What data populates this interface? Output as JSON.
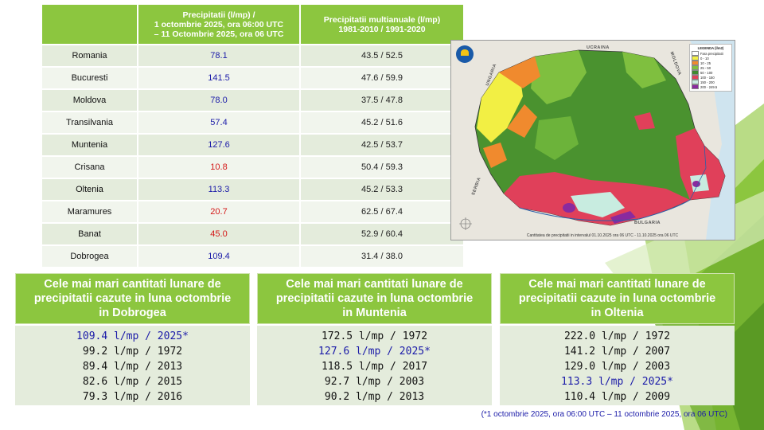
{
  "table": {
    "headers": [
      "",
      "Precipitatii (l/mp) /\n1 octombrie 2025, ora 06:00 UTC\n– 11 Octombrie 2025, ora 06 UTC",
      "Precipitatii multianuale (l/mp)\n1981-2010 / 1991-2020"
    ],
    "header_lines": {
      "col2": [
        "Precipitatii (l/mp) /",
        "1 octombrie 2025, ora 06:00 UTC",
        "– 11 Octombrie 2025, ora 06 UTC"
      ],
      "col3": [
        "Precipitatii multianuale (l/mp)",
        "1981-2010 / 1991-2020"
      ]
    },
    "rows": [
      {
        "region": "Romania",
        "value": "78.1",
        "color": "blue",
        "normal": "43.5 / 52.5"
      },
      {
        "region": "Bucuresti",
        "value": "141.5",
        "color": "blue",
        "normal": "47.6 / 59.9"
      },
      {
        "region": "Moldova",
        "value": "78.0",
        "color": "blue",
        "normal": "37.5 / 47.8"
      },
      {
        "region": "Transilvania",
        "value": "57.4",
        "color": "blue",
        "normal": "45.2 / 51.6"
      },
      {
        "region": "Muntenia",
        "value": "127.6",
        "color": "blue",
        "normal": "42.5 / 53.7"
      },
      {
        "region": "Crisana",
        "value": "10.8",
        "color": "red",
        "normal": "50.4 / 59.3"
      },
      {
        "region": "Oltenia",
        "value": "113.3",
        "color": "blue",
        "normal": "45.2 / 53.3"
      },
      {
        "region": "Maramures",
        "value": "20.7",
        "color": "red",
        "normal": "62.5 / 67.4"
      },
      {
        "region": "Banat",
        "value": "45.0",
        "color": "red",
        "normal": "52.9 / 60.4"
      },
      {
        "region": "Dobrogea",
        "value": "109.4",
        "color": "blue",
        "normal": "31.4 / 38.0"
      }
    ]
  },
  "map": {
    "country_labels": {
      "ukraine": "UCRAINA",
      "moldova": "MOLDOVA",
      "hungary": "UNGARIA",
      "serbia": "SERBIA",
      "bulgaria": "BULGARIA"
    },
    "legend_title": "LEGENDA (l/m2)",
    "legend": [
      {
        "label": "Fara precipitatii",
        "color": "#ffffff"
      },
      {
        "label": "0 - 10",
        "color": "#f2ef44"
      },
      {
        "label": "10 - 25",
        "color": "#f08a2e"
      },
      {
        "label": "25 - 50",
        "color": "#7fbf3f"
      },
      {
        "label": "50 - 100",
        "color": "#3f8a2f"
      },
      {
        "label": "100 - 150",
        "color": "#e0405a"
      },
      {
        "label": "150 - 200",
        "color": "#c8ece0"
      },
      {
        "label": "200 - 249.5",
        "color": "#8a2a9e"
      }
    ],
    "caption": "Cantitatea de precipitatii in intervalul 01.10.2025 ora 06 UTC - 11.10.2025 ora 06 UTC"
  },
  "boxes": [
    {
      "title_lines": [
        "Cele mai mari cantitati lunare de",
        "precipitatii cazute in luna octombrie",
        "in Dobrogea"
      ],
      "lines": [
        {
          "text": "109.4 l/mp / 2025*",
          "highlight": true
        },
        {
          "text": "99.2 l/mp / 1972",
          "highlight": false
        },
        {
          "text": "89.4 l/mp / 2013",
          "highlight": false
        },
        {
          "text": "82.6 l/mp / 2015",
          "highlight": false
        },
        {
          "text": "79.3 l/mp / 2016",
          "highlight": false
        }
      ]
    },
    {
      "title_lines": [
        "Cele mai mari cantitati lunare de",
        "precipitatii cazute in luna octombrie",
        "in Muntenia"
      ],
      "lines": [
        {
          "text": "172.5 l/mp / 1972",
          "highlight": false
        },
        {
          "text": "127.6 l/mp / 2025*",
          "highlight": true
        },
        {
          "text": "118.5 l/mp / 2017",
          "highlight": false
        },
        {
          "text": "92.7 l/mp / 2003",
          "highlight": false
        },
        {
          "text": "90.2 l/mp / 2013",
          "highlight": false
        }
      ]
    },
    {
      "title_lines": [
        "Cele mai mari cantitati lunare de",
        "precipitatii cazute in luna octombrie",
        "in Oltenia"
      ],
      "lines": [
        {
          "text": "222.0 l/mp / 1972",
          "highlight": false
        },
        {
          "text": "141.2 l/mp / 2007",
          "highlight": false
        },
        {
          "text": "129.0 l/mp / 2003",
          "highlight": false
        },
        {
          "text": "113.3 l/mp / 2025*",
          "highlight": true
        },
        {
          "text": "110.4 l/mp / 2009",
          "highlight": false
        }
      ]
    }
  ],
  "footnote": "(*1 octombrie 2025, ora 06:00 UTC – 11 octombrie 2025, ora 06 UTC)",
  "colors": {
    "accent_green": "#8cc63f",
    "row_odd": "#e4ecdc",
    "row_even": "#f1f5ed",
    "above_text": "#1a1aa8",
    "below_text": "#d41818"
  }
}
